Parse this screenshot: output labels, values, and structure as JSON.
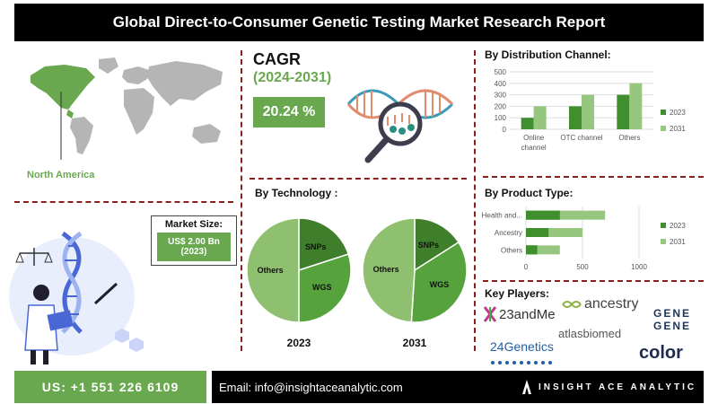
{
  "header": {
    "title": "Global Direct-to-Consumer Genetic Testing Market  Research Report"
  },
  "region": {
    "label": "North America"
  },
  "market_size": {
    "label": "Market Size:",
    "value_line1": "US$ 2.00 Bn",
    "value_line2": "(2023)"
  },
  "cagr": {
    "title": "CAGR",
    "period": "(2024-2031)",
    "value": "20.24 %"
  },
  "colors": {
    "dark_green": "#3f8f2e",
    "light_green": "#97c77e",
    "accent_green": "#6aa84f",
    "dash": "#8b1e1e"
  },
  "chart_data": [
    {
      "type": "bar",
      "title": "By Distribution Channel:",
      "categories": [
        "Online channel",
        "OTC channel",
        "Others"
      ],
      "series": [
        {
          "name": "2023",
          "values": [
            100,
            200,
            300
          ]
        },
        {
          "name": "2031",
          "values": [
            200,
            300,
            400
          ]
        }
      ],
      "ylim": [
        0,
        500
      ],
      "yticks": [
        "0",
        "100",
        "200",
        "300",
        "400",
        "500"
      ],
      "legend": "right",
      "grid": true
    },
    {
      "type": "bar",
      "orientation": "horizontal",
      "title": "By Product Type:",
      "categories": [
        "Health and...",
        "Ancestry",
        "Others"
      ],
      "series": [
        {
          "name": "2023",
          "values": [
            300,
            200,
            100
          ]
        },
        {
          "name": "2031",
          "values": [
            700,
            500,
            300
          ]
        }
      ],
      "xlim": [
        0,
        1000
      ],
      "xticks": [
        "0",
        "500",
        "1000"
      ],
      "legend": "right",
      "grid": true
    },
    {
      "type": "pie",
      "title": "By Technology :",
      "charts": [
        {
          "label": "2023",
          "slices": [
            {
              "name": "SNPs",
              "value": 20
            },
            {
              "name": "WGS",
              "value": 30
            },
            {
              "name": "Others",
              "value": 50
            }
          ]
        },
        {
          "label": "2031",
          "slices": [
            {
              "name": "SNPs",
              "value": 16
            },
            {
              "name": "WGS",
              "value": 35
            },
            {
              "name": "Others",
              "value": 49
            }
          ]
        }
      ]
    }
  ],
  "key_players": {
    "title": "Key Players:",
    "items": [
      "23andMe",
      "ancestry",
      "GENE",
      "GENE",
      "atlasbiomed",
      "24Genetics",
      "color"
    ]
  },
  "footer": {
    "phone": "US: +1 551 226 6109",
    "email": "Email: info@insightaceanalytic.com",
    "brand": "INSIGHT ACE ANALYTIC"
  }
}
